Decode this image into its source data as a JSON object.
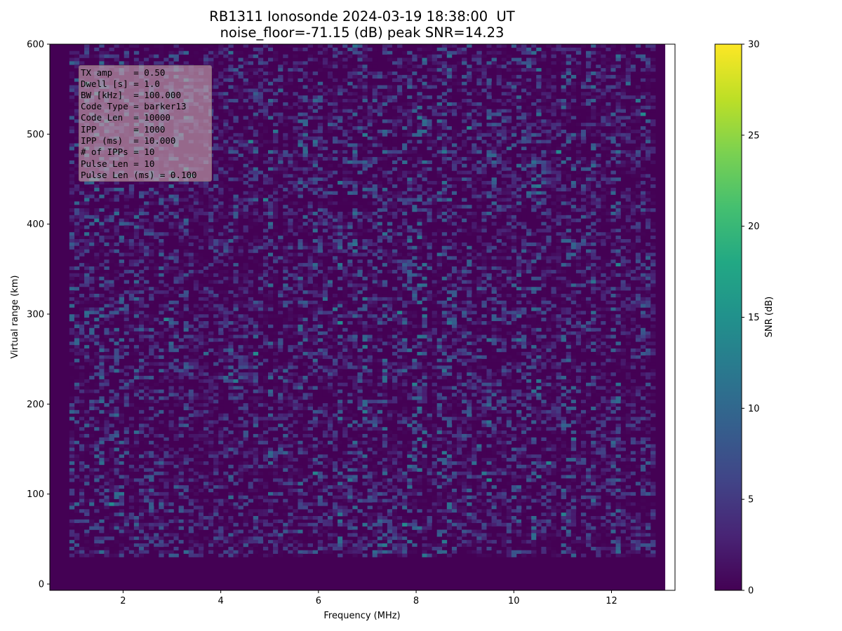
{
  "title_line1": "RB1311 Ionosonde 2024-03-19 18:38:00  UT",
  "title_line2": "noise_floor=-71.15 (dB) peak SNR=14.23",
  "info_lines": [
    "TX amp    = 0.50",
    "Dwell [s] = 1.0",
    "BW [kHz]  = 100.000",
    "Code Type = barker13",
    "Code Len  = 10000",
    "IPP       = 1000",
    "IPP (ms)  = 10.000",
    "# of IPPs = 10",
    "Pulse Len = 10",
    "Pulse Len (ms) = 0.100"
  ],
  "colors": {
    "background": "#440154",
    "colormap": [
      "#440154",
      "#482475",
      "#414487",
      "#355f8d",
      "#2a788e",
      "#21918c",
      "#22a884",
      "#44bf70",
      "#7ad151",
      "#bddf26",
      "#fde725"
    ]
  },
  "chart_data": {
    "type": "heatmap",
    "title": "RB1311 Ionosonde 2024-03-19 18:38:00  UT",
    "subtitle": "noise_floor=-71.15 (dB) peak SNR=14.23",
    "xlabel": "Frequency (MHz)",
    "ylabel": "Virtual range (km)",
    "xlim": [
      0.5,
      13.3
    ],
    "ylim": [
      -7,
      600
    ],
    "xticks": [
      2,
      4,
      6,
      8,
      10,
      12
    ],
    "yticks": [
      0,
      100,
      200,
      300,
      400,
      500,
      600
    ],
    "colorbar": {
      "label": "SNR (dB)",
      "range": [
        0,
        30
      ],
      "ticks": [
        0,
        5,
        10,
        15,
        20,
        25,
        30
      ],
      "colormap": "viridis"
    },
    "data_extent": {
      "freq_min": 0.5,
      "freq_max": 13.1,
      "range_min": -7,
      "range_max": 600
    },
    "signal_region": {
      "freq_min": 0.9,
      "freq_max": 12.9,
      "range_min": 30,
      "range_max": 600,
      "snr_max": 14.23
    },
    "grid": false
  }
}
